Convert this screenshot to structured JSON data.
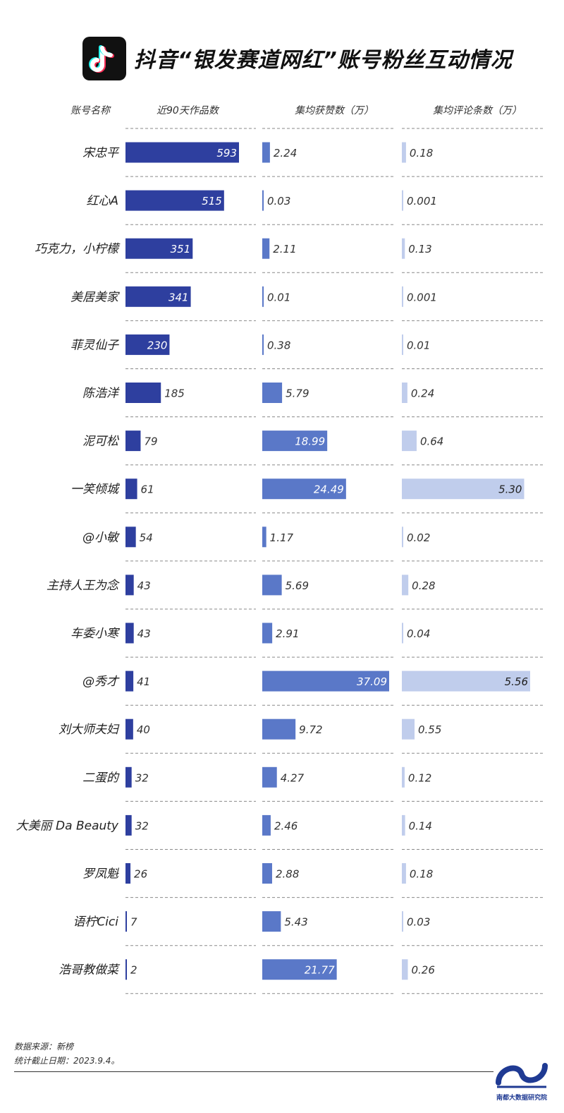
{
  "header": {
    "title": "抖音“银发赛道网红”账号粉丝互动情况",
    "logo_icon": "tiktok-icon"
  },
  "columns": [
    "账号名称",
    "近90天作品数",
    "集均获赞数（万）",
    "集均评论条数（万）"
  ],
  "colors": {
    "works_bar": "#2e3f9f",
    "likes_bar": "#5a78c8",
    "comments_bar": "#c0cdec",
    "inside_text": "#ffffff"
  },
  "chart_data": {
    "type": "bar",
    "categories": [
      "宋忠平",
      "红心A",
      "巧克力，小柠檬",
      "美居美家",
      "菲灵仙子",
      "陈浩洋",
      "泥可松",
      "一笑倾城",
      "@小敏",
      "主持人王为念",
      "车委小寒",
      "@秀才",
      "刘大师夫妇",
      "二蛋的",
      "大美丽 Da Beauty",
      "罗凤魁",
      "语柠Cici",
      "浩哥教做菜"
    ],
    "series": [
      {
        "name": "近90天作品数",
        "labels": [
          "593",
          "515",
          "351",
          "341",
          "230",
          "185",
          "79",
          "61",
          "54",
          "43",
          "43",
          "41",
          "40",
          "32",
          "32",
          "26",
          "7",
          "2"
        ],
        "values": [
          593,
          515,
          351,
          341,
          230,
          185,
          79,
          61,
          54,
          43,
          43,
          41,
          40,
          32,
          32,
          26,
          7,
          2
        ]
      },
      {
        "name": "集均获赞数（万）",
        "labels": [
          "2.24",
          "0.03",
          "2.11",
          "0.01",
          "0.38",
          "5.79",
          "18.99",
          "24.49",
          "1.17",
          "5.69",
          "2.91",
          "37.09",
          "9.72",
          "4.27",
          "2.46",
          "2.88",
          "5.43",
          "21.77"
        ],
        "values": [
          2.24,
          0.03,
          2.11,
          0.01,
          0.38,
          5.79,
          18.99,
          24.49,
          1.17,
          5.69,
          2.91,
          37.09,
          9.72,
          4.27,
          2.46,
          2.88,
          5.43,
          21.77
        ]
      },
      {
        "name": "集均评论条数（万）",
        "labels": [
          "0.18",
          "0.001",
          "0.13",
          "0.001",
          "0.01",
          "0.24",
          "0.64",
          "5.30",
          "0.02",
          "0.28",
          "0.04",
          "5.56",
          "0.55",
          "0.12",
          "0.14",
          "0.18",
          "0.03",
          "0.26"
        ],
        "values": [
          0.18,
          0.001,
          0.13,
          0.001,
          0.01,
          0.24,
          0.64,
          5.3,
          0.02,
          0.28,
          0.04,
          5.56,
          0.55,
          0.12,
          0.14,
          0.18,
          0.03,
          0.26
        ]
      }
    ]
  },
  "footer": {
    "source": "数据来源：新榜",
    "date": "统计截止日期：2023.9.4。",
    "brand": "南都大数据研究院",
    "brand_icon": "wave-logo-icon"
  }
}
